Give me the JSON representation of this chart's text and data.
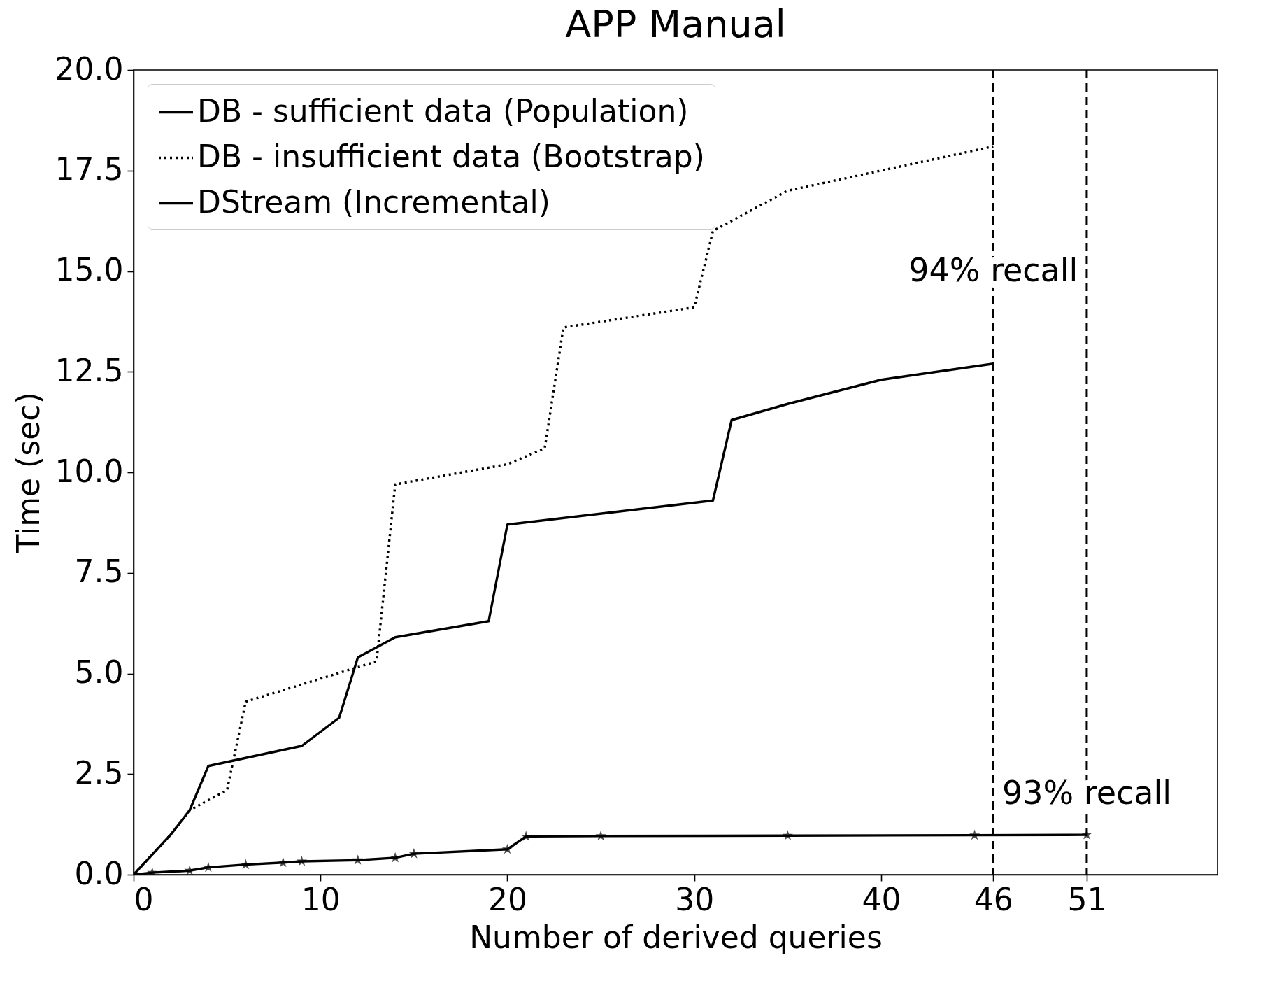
{
  "chart_data": {
    "type": "line",
    "title": "APP Manual",
    "xlabel": "Number of derived queries",
    "ylabel": "Time (sec)",
    "xlim": [
      0,
      58
    ],
    "xticks": [
      0,
      10,
      20,
      30,
      40,
      46,
      51
    ],
    "ylim": [
      0,
      20
    ],
    "yticks": [
      {
        "value": 0,
        "label": "0.0"
      },
      {
        "value": 2.5,
        "label": "2.5"
      },
      {
        "value": 5,
        "label": "5.0"
      },
      {
        "value": 7.5,
        "label": "7.5"
      },
      {
        "value": 10,
        "label": "10.0"
      },
      {
        "value": 12.5,
        "label": "12.5"
      },
      {
        "value": 15,
        "label": "15.0"
      },
      {
        "value": 17.5,
        "label": "17.5"
      },
      {
        "value": 20,
        "label": "20.0"
      }
    ],
    "legend": "top left",
    "series": [
      {
        "name": "DB - sufficient data (Population)",
        "color": "#000000",
        "line_style": "solid",
        "marker": "none",
        "x": [
          0,
          2,
          3,
          4,
          9,
          11,
          12,
          14,
          19,
          20,
          31,
          32,
          35,
          40,
          46
        ],
        "values": [
          0,
          1.0,
          1.6,
          2.7,
          3.2,
          3.9,
          5.4,
          5.9,
          6.3,
          8.7,
          9.3,
          11.3,
          11.7,
          12.3,
          12.7
        ]
      },
      {
        "name": "DB - insufficient data (Bootstrap)",
        "color": "#000000",
        "line_style": "dotted",
        "marker": "none",
        "x": [
          0,
          2,
          3,
          5,
          6,
          13,
          14,
          20,
          22,
          23,
          30,
          31,
          35,
          46
        ],
        "values": [
          0,
          1.0,
          1.6,
          2.1,
          4.3,
          5.3,
          9.7,
          10.2,
          10.6,
          13.6,
          14.1,
          16.0,
          17.0,
          18.1
        ]
      },
      {
        "name": "DStream (Incremental)",
        "color": "#000000",
        "line_style": "solid",
        "marker": "star",
        "x": [
          0,
          1,
          3,
          4,
          6,
          8,
          9,
          12,
          14,
          15,
          20,
          21,
          25,
          35,
          45,
          51
        ],
        "values": [
          0,
          0.05,
          0.1,
          0.18,
          0.25,
          0.3,
          0.33,
          0.36,
          0.42,
          0.52,
          0.63,
          0.95,
          0.96,
          0.97,
          0.98,
          0.99
        ]
      }
    ],
    "ref_lines": [
      {
        "axis": "x",
        "value": 46,
        "line_style": "dashed",
        "color": "#000000"
      },
      {
        "axis": "x",
        "value": 51,
        "line_style": "dashed",
        "color": "#000000"
      }
    ],
    "annotations": [
      {
        "text": "94% recall",
        "x": 46,
        "y": 15
      },
      {
        "text": "93% recall",
        "x": 51,
        "y": 2
      }
    ]
  }
}
